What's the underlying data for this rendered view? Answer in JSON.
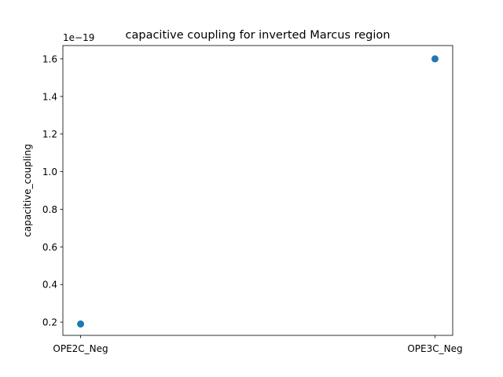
{
  "chart_data": {
    "type": "scatter",
    "title": "capacitive coupling for inverted Marcus region",
    "xlabel": "",
    "ylabel": "capacitive_coupling",
    "y_offset_label": "1e−19",
    "categories": [
      "OPE2C_Neg",
      "OPE3C_Neg"
    ],
    "values": [
      0.19,
      1.6
    ],
    "ylim": [
      0.1295,
      1.6705
    ],
    "yticks": [
      0.2,
      0.4,
      0.6,
      0.8,
      1.0,
      1.2,
      1.4,
      1.6
    ],
    "ytick_labels": [
      "0.2",
      "0.4",
      "0.6",
      "0.8",
      "1.0",
      "1.2",
      "1.4",
      "1.6"
    ],
    "grid": false,
    "marker_color": "#1f77b4"
  }
}
